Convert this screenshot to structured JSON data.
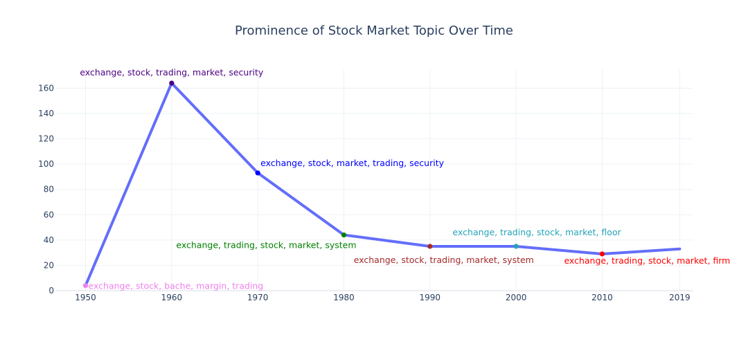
{
  "chart_data": {
    "type": "line",
    "title": "Prominence of Stock Market Topic Over Time",
    "xlabel": "",
    "ylabel": "",
    "x": [
      1950,
      1960,
      1970,
      1980,
      1990,
      2000,
      2010,
      2019
    ],
    "y": [
      4,
      164,
      93,
      44,
      35,
      35,
      29,
      33
    ],
    "x_ticks": [
      "1950",
      "1960",
      "1970",
      "1980",
      "1990",
      "2000",
      "2010",
      "2019"
    ],
    "y_ticks": [
      0,
      20,
      40,
      60,
      80,
      100,
      120,
      140,
      160
    ],
    "xlim": [
      1946.5,
      2020.5
    ],
    "ylim": [
      0,
      175
    ],
    "grid": true,
    "line_color": "#636efa",
    "points": [
      {
        "x": 1950,
        "y": 4,
        "color": "#ee82ee",
        "label": "exchange, stock, bache, margin, trading"
      },
      {
        "x": 1960,
        "y": 164,
        "color": "#4b0082",
        "label": "exchange, stock, trading, market, security"
      },
      {
        "x": 1970,
        "y": 93,
        "color": "#0000ff",
        "label": "exchange, stock, market, trading, security"
      },
      {
        "x": 1980,
        "y": 44,
        "color": "#008000",
        "label": "exchange, trading, stock, market, system"
      },
      {
        "x": 1990,
        "y": 35,
        "color": "#a52a2a",
        "label": "exchange, stock, trading, market, system"
      },
      {
        "x": 2000,
        "y": 35,
        "color": "#24a4b8",
        "label": "exchange, trading, stock, market, floor"
      },
      {
        "x": 2010,
        "y": 29,
        "color": "#ff0000",
        "label": "exchange, trading, stock, market, firm"
      }
    ]
  }
}
